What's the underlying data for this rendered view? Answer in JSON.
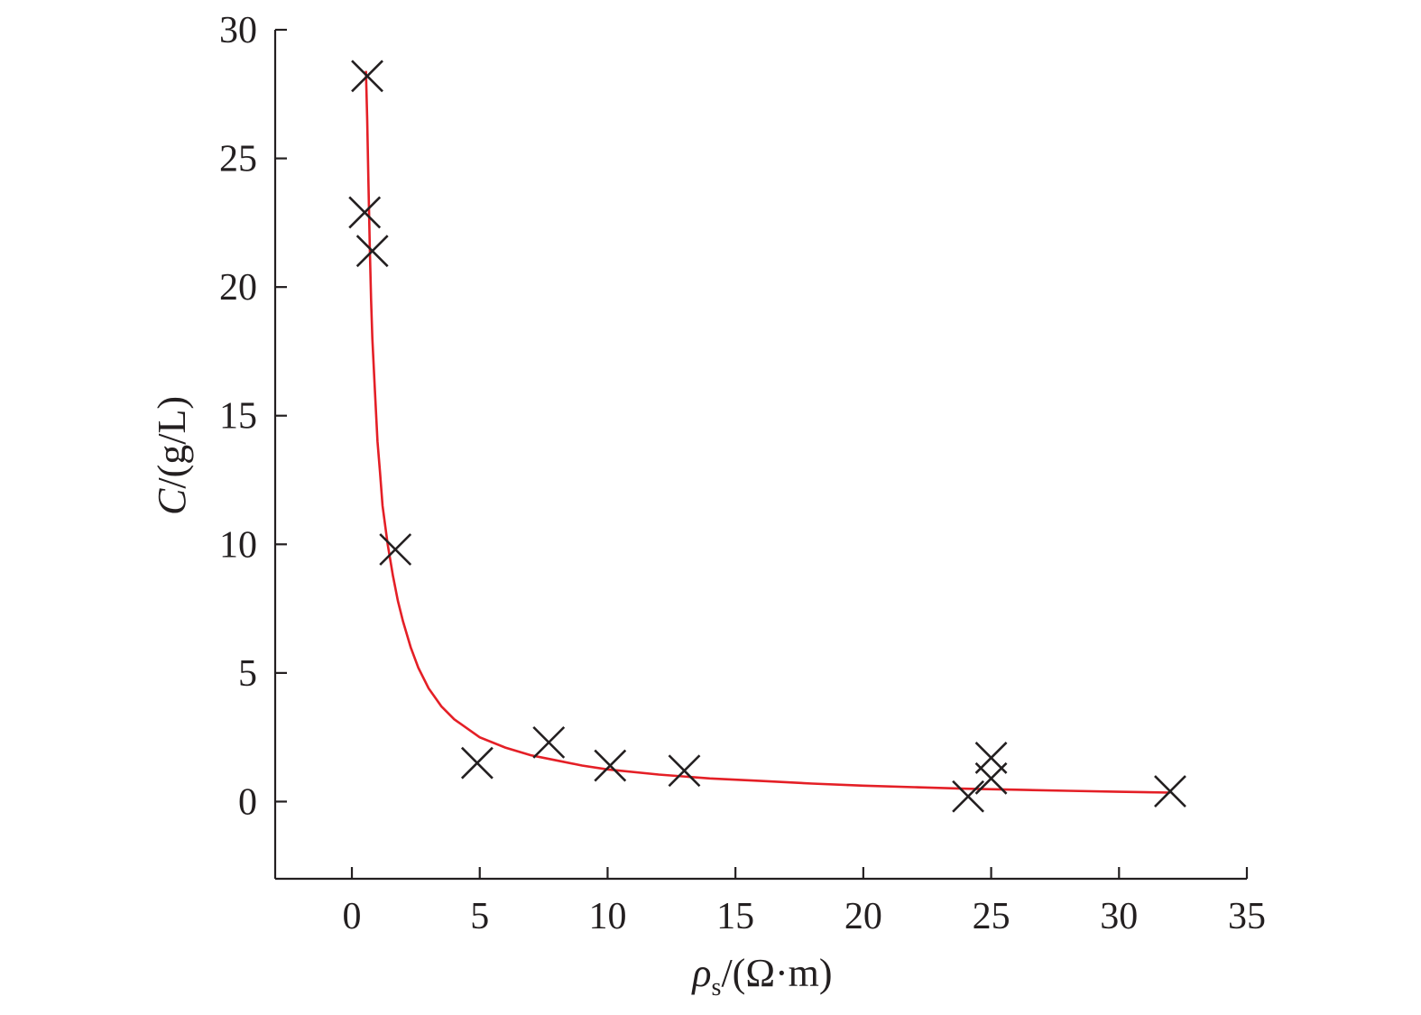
{
  "chart_data": {
    "type": "scatter",
    "xlabel": {
      "symbol": "ρ",
      "subscript": "s",
      "unit": "/(Ω·m)"
    },
    "ylabel": {
      "symbol": "C",
      "unit": "/(g/L)"
    },
    "xlim": [
      -3,
      35
    ],
    "ylim": [
      -3,
      30
    ],
    "x_ticks": [
      0,
      5,
      10,
      15,
      20,
      25,
      30,
      35
    ],
    "y_ticks": [
      0,
      5,
      10,
      15,
      20,
      25,
      30
    ],
    "grid": false,
    "legend": "none",
    "colors": {
      "axis": "#231f20",
      "markers": "#231f20",
      "fit": "#e41f26"
    },
    "series": [
      {
        "marker": "x",
        "points": [
          {
            "x": 0.6,
            "y": 28.2
          },
          {
            "x": 0.5,
            "y": 22.9
          },
          {
            "x": 0.8,
            "y": 21.4
          },
          {
            "x": 1.7,
            "y": 9.8
          },
          {
            "x": 4.9,
            "y": 1.5
          },
          {
            "x": 7.7,
            "y": 2.3
          },
          {
            "x": 10.1,
            "y": 1.4
          },
          {
            "x": 13.0,
            "y": 1.2
          },
          {
            "x": 24.1,
            "y": 0.2
          },
          {
            "x": 25.0,
            "y": 1.7
          },
          {
            "x": 25.0,
            "y": 0.9
          },
          {
            "x": 32.0,
            "y": 0.4
          }
        ]
      },
      {
        "style": "fit-line",
        "points": [
          {
            "x": 0.55,
            "y": 28.4
          },
          {
            "x": 0.6,
            "y": 26.5
          },
          {
            "x": 0.65,
            "y": 24.0
          },
          {
            "x": 0.7,
            "y": 21.5
          },
          {
            "x": 0.75,
            "y": 19.5
          },
          {
            "x": 0.8,
            "y": 18.0
          },
          {
            "x": 0.9,
            "y": 16.0
          },
          {
            "x": 1.0,
            "y": 14.0
          },
          {
            "x": 1.1,
            "y": 12.8
          },
          {
            "x": 1.2,
            "y": 11.5
          },
          {
            "x": 1.4,
            "y": 10.0
          },
          {
            "x": 1.6,
            "y": 8.8
          },
          {
            "x": 1.8,
            "y": 7.8
          },
          {
            "x": 2.0,
            "y": 7.0
          },
          {
            "x": 2.3,
            "y": 6.0
          },
          {
            "x": 2.6,
            "y": 5.2
          },
          {
            "x": 3.0,
            "y": 4.4
          },
          {
            "x": 3.5,
            "y": 3.7
          },
          {
            "x": 4.0,
            "y": 3.2
          },
          {
            "x": 5.0,
            "y": 2.5
          },
          {
            "x": 6.0,
            "y": 2.1
          },
          {
            "x": 7.0,
            "y": 1.8
          },
          {
            "x": 8.0,
            "y": 1.6
          },
          {
            "x": 9.0,
            "y": 1.4
          },
          {
            "x": 10.0,
            "y": 1.25
          },
          {
            "x": 12.0,
            "y": 1.05
          },
          {
            "x": 14.0,
            "y": 0.9
          },
          {
            "x": 16.0,
            "y": 0.8
          },
          {
            "x": 18.0,
            "y": 0.7
          },
          {
            "x": 20.0,
            "y": 0.62
          },
          {
            "x": 22.0,
            "y": 0.56
          },
          {
            "x": 24.0,
            "y": 0.5
          },
          {
            "x": 26.0,
            "y": 0.46
          },
          {
            "x": 28.0,
            "y": 0.42
          },
          {
            "x": 30.0,
            "y": 0.38
          },
          {
            "x": 32.0,
            "y": 0.35
          }
        ]
      }
    ]
  }
}
